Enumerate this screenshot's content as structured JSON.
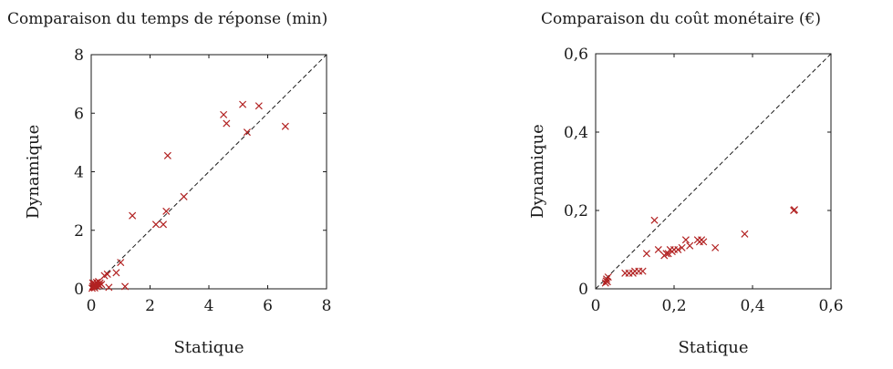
{
  "chart_data": [
    {
      "type": "scatter",
      "title": "Comparaison du temps de réponse (min)",
      "xlabel": "Statique",
      "ylabel": "Dynamique",
      "xlim": [
        0,
        8
      ],
      "ylim": [
        0,
        8
      ],
      "xticks": [
        "0",
        "2",
        "4",
        "6",
        "8"
      ],
      "yticks": [
        "0",
        "2",
        "4",
        "6",
        "8"
      ],
      "tick_values": [
        0,
        2,
        4,
        6,
        8
      ],
      "diagonal": true,
      "marker_color": "#b22222",
      "points": [
        [
          0.03,
          0.02
        ],
        [
          0.05,
          0.08
        ],
        [
          0.08,
          0.12
        ],
        [
          0.1,
          0.05
        ],
        [
          0.12,
          0.18
        ],
        [
          0.15,
          0.1
        ],
        [
          0.18,
          0.22
        ],
        [
          0.2,
          0.08
        ],
        [
          0.22,
          0.15
        ],
        [
          0.25,
          0.25
        ],
        [
          0.28,
          0.12
        ],
        [
          0.3,
          0.2
        ],
        [
          0.05,
          0.2
        ],
        [
          0.12,
          0.03
        ],
        [
          0.35,
          0.15
        ],
        [
          0.45,
          0.45
        ],
        [
          0.55,
          0.5
        ],
        [
          0.6,
          0.05
        ],
        [
          0.85,
          0.55
        ],
        [
          1.0,
          0.9
        ],
        [
          1.15,
          0.08
        ],
        [
          1.4,
          2.5
        ],
        [
          2.2,
          2.2
        ],
        [
          2.45,
          2.2
        ],
        [
          2.55,
          2.65
        ],
        [
          2.6,
          4.55
        ],
        [
          3.15,
          3.15
        ],
        [
          4.5,
          5.95
        ],
        [
          4.6,
          5.65
        ],
        [
          5.15,
          6.3
        ],
        [
          5.3,
          5.35
        ],
        [
          5.7,
          6.25
        ],
        [
          6.6,
          5.55
        ]
      ]
    },
    {
      "type": "scatter",
      "title": "Comparaison du coût monétaire (€)",
      "xlabel": "Statique",
      "ylabel": "Dynamique",
      "xlim": [
        0,
        0.6
      ],
      "ylim": [
        0,
        0.6
      ],
      "xticks": [
        "0",
        "0,2",
        "0,4",
        "0,6"
      ],
      "yticks": [
        "0",
        "0,2",
        "0,4",
        "0,6"
      ],
      "tick_values": [
        0,
        0.2,
        0.4,
        0.6
      ],
      "diagonal": true,
      "marker_color": "#b22222",
      "points": [
        [
          0.025,
          0.015
        ],
        [
          0.027,
          0.02
        ],
        [
          0.03,
          0.018
        ],
        [
          0.032,
          0.03
        ],
        [
          0.028,
          0.025
        ],
        [
          0.075,
          0.04
        ],
        [
          0.085,
          0.04
        ],
        [
          0.095,
          0.04
        ],
        [
          0.1,
          0.045
        ],
        [
          0.11,
          0.045
        ],
        [
          0.12,
          0.045
        ],
        [
          0.13,
          0.09
        ],
        [
          0.15,
          0.175
        ],
        [
          0.16,
          0.1
        ],
        [
          0.175,
          0.085
        ],
        [
          0.18,
          0.09
        ],
        [
          0.185,
          0.09
        ],
        [
          0.19,
          0.1
        ],
        [
          0.195,
          0.095
        ],
        [
          0.2,
          0.1
        ],
        [
          0.21,
          0.1
        ],
        [
          0.22,
          0.105
        ],
        [
          0.23,
          0.125
        ],
        [
          0.24,
          0.11
        ],
        [
          0.26,
          0.125
        ],
        [
          0.265,
          0.12
        ],
        [
          0.27,
          0.125
        ],
        [
          0.275,
          0.12
        ],
        [
          0.305,
          0.105
        ],
        [
          0.38,
          0.14
        ],
        [
          0.505,
          0.2
        ],
        [
          0.507,
          0.202
        ]
      ]
    }
  ]
}
